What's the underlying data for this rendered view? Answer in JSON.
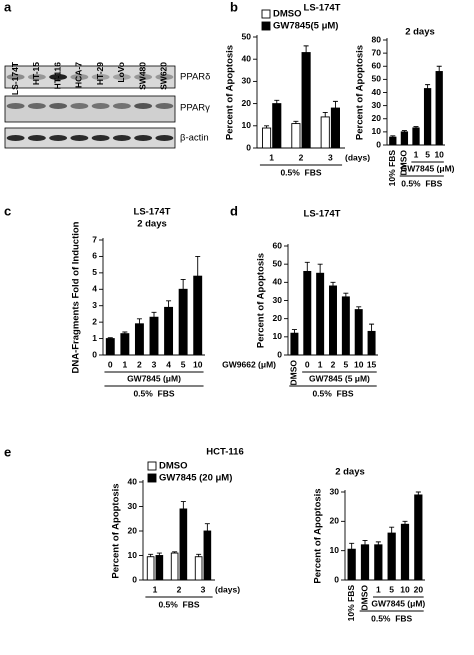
{
  "panel_labels": [
    "a",
    "b",
    "c",
    "d",
    "e"
  ],
  "blot": {
    "lanes": [
      "LS-174T",
      "HT-15",
      "HT-116",
      "HCA-7",
      "HT-29",
      "LoVo",
      "SW480",
      "SW620"
    ],
    "proteins": [
      "PPARδ",
      "PPARγ",
      "β-actin"
    ]
  },
  "chart_data": [
    {
      "type": "bar",
      "title": "LS-174T",
      "categories": [
        "1",
        "2",
        "3"
      ],
      "x_unit": "(days)",
      "x_label": "0.5%  FBS",
      "y_label": "Percent of Apoptosis",
      "ylim": [
        0,
        50
      ],
      "yticks": [
        0,
        10,
        20,
        30,
        40,
        50
      ],
      "series": [
        {
          "name": "DMSO",
          "color": "#ffffff",
          "values": [
            9,
            11,
            14
          ],
          "errors": [
            1,
            1,
            2
          ]
        },
        {
          "name": "GW7845(5 μM)",
          "color": "#000000",
          "values": [
            20,
            43,
            18
          ],
          "errors": [
            1.5,
            3,
            3
          ]
        }
      ]
    },
    {
      "type": "bar",
      "title": "2 days",
      "categories": [
        "10% FBS",
        "DMSO",
        "1",
        "5",
        "10"
      ],
      "values": [
        6,
        10,
        13,
        43,
        56
      ],
      "errors": [
        1,
        1,
        1,
        3,
        4
      ],
      "color": "#000000",
      "group_label": "GW7845 (μM)",
      "x_label": "0.5%  FBS",
      "y_label": "Percent of Apoptosis",
      "ylim": [
        0,
        80
      ],
      "yticks": [
        0,
        10,
        20,
        30,
        40,
        50,
        60,
        70,
        80
      ]
    },
    {
      "type": "bar",
      "title": "LS-174T",
      "subtitle": "2 days",
      "categories": [
        "0",
        "1",
        "2",
        "3",
        "4",
        "5",
        "10"
      ],
      "values": [
        1.0,
        1.3,
        1.9,
        2.3,
        2.9,
        4.0,
        4.8
      ],
      "errors": [
        0.05,
        0.1,
        0.3,
        0.3,
        0.4,
        0.6,
        1.2
      ],
      "color": "#000000",
      "group_label": "GW7845 (μM)",
      "x_label": "0.5%  FBS",
      "y_label": "DNA-Fragments Fold of Induction",
      "ylim": [
        0,
        7
      ],
      "yticks": [
        0,
        1,
        2,
        3,
        4,
        5,
        6,
        7
      ]
    },
    {
      "type": "bar",
      "title": "LS-174T",
      "categories": [
        "DMSO",
        "0",
        "1",
        "2",
        "5",
        "10",
        "15"
      ],
      "values": [
        12,
        46,
        45,
        38,
        32,
        25,
        13
      ],
      "errors": [
        2,
        5,
        5,
        2,
        2,
        1.5,
        4
      ],
      "color": "#000000",
      "category_label": "GW9662 (μM)",
      "group_label": "GW7845 (5 μM)",
      "x_label": "0.5%  FBS",
      "y_label": "Percent of Apoptosis",
      "ylim": [
        0,
        60
      ],
      "yticks": [
        0,
        10,
        20,
        30,
        40,
        50,
        60
      ]
    },
    {
      "type": "bar",
      "title": "HCT-116",
      "categories": [
        "1",
        "2",
        "3"
      ],
      "x_unit": "(days)",
      "x_label": "0.5%  FBS",
      "y_label": "Percent of Apoptosis",
      "ylim": [
        0,
        40
      ],
      "yticks": [
        0,
        10,
        20,
        30,
        40
      ],
      "series": [
        {
          "name": "DMSO",
          "color": "#ffffff",
          "values": [
            9.5,
            11,
            9.5
          ],
          "errors": [
            1,
            0.5,
            1
          ]
        },
        {
          "name": "GW7845 (20 μM)",
          "color": "#000000",
          "values": [
            10,
            29,
            20
          ],
          "errors": [
            1,
            3,
            3
          ]
        }
      ]
    },
    {
      "type": "bar",
      "title": "2 days",
      "categories": [
        "10% FBS",
        "DMSO",
        "1",
        "5",
        "10",
        "20"
      ],
      "values": [
        10.5,
        12,
        12,
        16,
        19,
        29
      ],
      "errors": [
        2,
        1.5,
        1,
        2,
        1,
        1
      ],
      "color": "#000000",
      "group_label": "GW7845 (μM)",
      "x_label": "0.5%  FBS",
      "y_label": "Percent of Apoptosis",
      "ylim": [
        0,
        30
      ],
      "yticks": [
        0,
        10,
        20,
        30
      ]
    }
  ]
}
